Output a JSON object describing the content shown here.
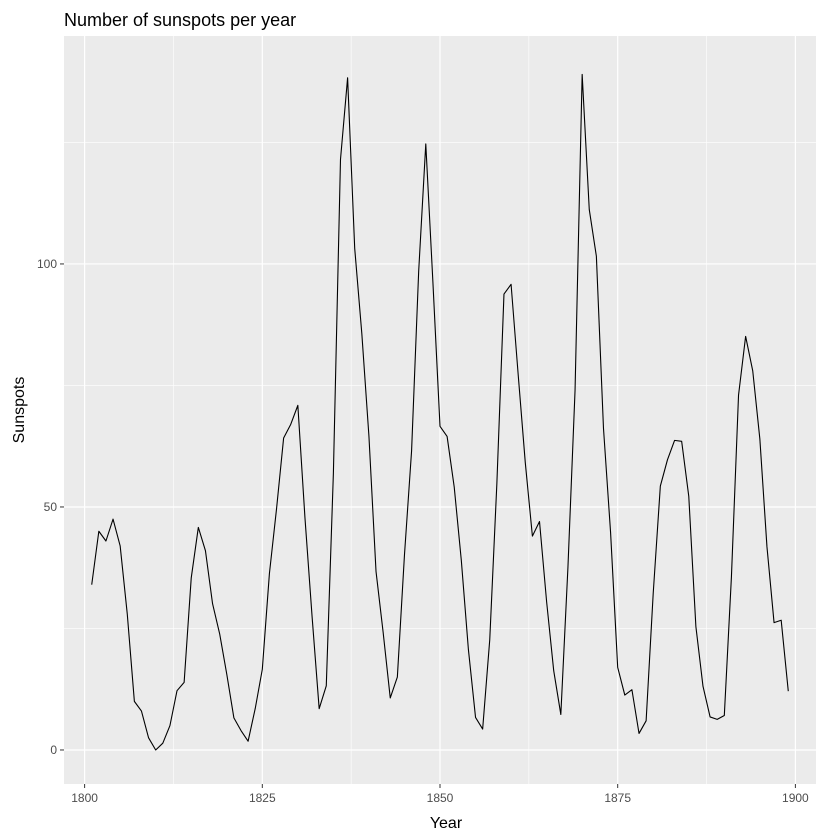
{
  "chart_data": {
    "type": "line",
    "title": "Number of sunspots per year",
    "xlabel": "Year",
    "ylabel": "Sunspots",
    "xlim": [
      1797.1,
      1902.9
    ],
    "ylim": [
      -7.0,
      146.9
    ],
    "x_ticks": [
      1800,
      1825,
      1850,
      1875,
      1900
    ],
    "y_ticks": [
      0,
      50,
      100
    ],
    "x_minor_ticks": [
      1812.5,
      1837.5,
      1862.5,
      1887.5
    ],
    "y_minor_ticks": [
      25,
      75,
      125
    ],
    "grid": true,
    "legend": "none",
    "colors": {
      "panel_background": "#ebebeb",
      "grid": "#ffffff",
      "line": "#000000",
      "tick_label": "#4d4d4d"
    },
    "series": [
      {
        "x": [
          1801,
          1802,
          1803,
          1804,
          1805,
          1806,
          1807,
          1808,
          1809,
          1810,
          1811,
          1812,
          1813,
          1814,
          1815,
          1816,
          1817,
          1818,
          1819,
          1820,
          1821,
          1822,
          1823,
          1824,
          1825,
          1826,
          1827,
          1828,
          1829,
          1830,
          1831,
          1832,
          1833,
          1834,
          1835,
          1836,
          1837,
          1838,
          1839,
          1840,
          1841,
          1842,
          1843,
          1844,
          1845,
          1846,
          1847,
          1848,
          1849,
          1850,
          1851,
          1852,
          1853,
          1854,
          1855,
          1856,
          1857,
          1858,
          1859,
          1860,
          1861,
          1862,
          1863,
          1864,
          1865,
          1866,
          1867,
          1868,
          1869,
          1870,
          1871,
          1872,
          1873,
          1874,
          1875,
          1876,
          1877,
          1878,
          1879,
          1880,
          1881,
          1882,
          1883,
          1884,
          1885,
          1886,
          1887,
          1888,
          1889,
          1890,
          1891,
          1892,
          1893,
          1894,
          1895,
          1896,
          1897,
          1898,
          1899
        ],
        "values": [
          34,
          45,
          43,
          47.5,
          42,
          28,
          10,
          8,
          2.5,
          0,
          1.4,
          5,
          12.2,
          13.9,
          35.4,
          45.8,
          41,
          30.1,
          23.9,
          15.6,
          6.6,
          4,
          1.8,
          8.5,
          16.6,
          36.3,
          49.6,
          64.2,
          67,
          70.9,
          47.8,
          27.5,
          8.5,
          13.2,
          56.9,
          121.5,
          138.3,
          103.2,
          85.7,
          64.6,
          36.7,
          24.2,
          10.7,
          15,
          40.1,
          61.5,
          98.5,
          124.7,
          96.3,
          66.6,
          64.5,
          54.1,
          39,
          20.6,
          6.7,
          4.3,
          22.7,
          54.8,
          93.8,
          95.8,
          77.2,
          59.1,
          44,
          47,
          30.5,
          16.3,
          7.3,
          37.6,
          74,
          139,
          111.2,
          101.6,
          66.2,
          44.7,
          17,
          11.3,
          12.4,
          3.4,
          6,
          32.3,
          54.3,
          59.7,
          63.7,
          63.5,
          52.2,
          25.4,
          13.1,
          6.8,
          6.3,
          7.1,
          35.6,
          73,
          85.1,
          78,
          64,
          41.8,
          26.2,
          26.7,
          12.1
        ]
      }
    ]
  }
}
